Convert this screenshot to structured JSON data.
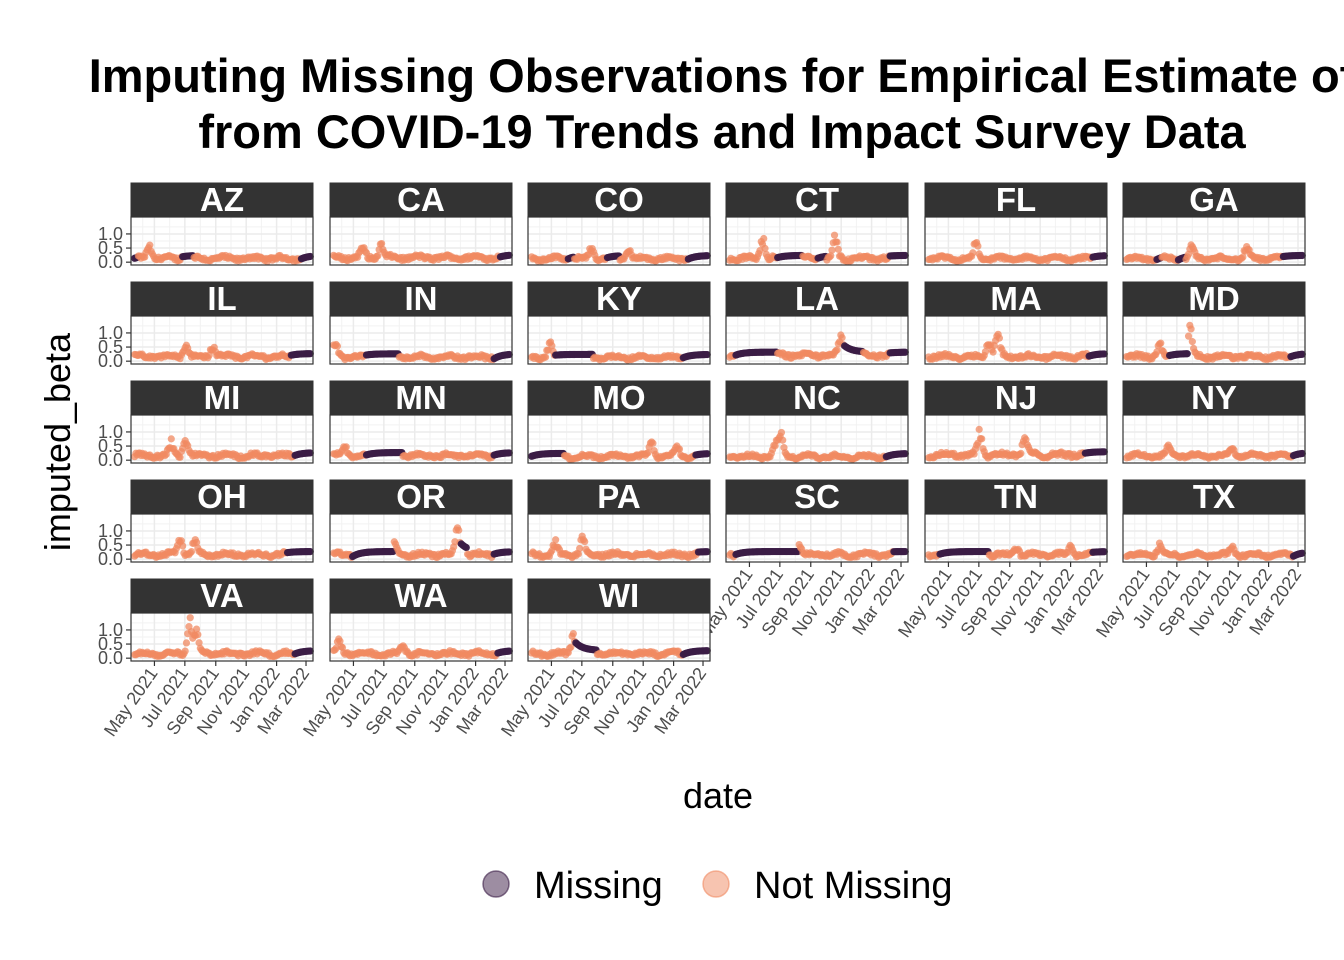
{
  "chart_data": {
    "type": "scatter",
    "title_line1": "Imputing Missing Observations for Empirical Estimate of",
    "title_line2": "from COVID-19 Trends and Impact Survey Data",
    "xlabel": "date",
    "ylabel": "imputed_beta",
    "x_ticks": [
      "May 2021",
      "Jul 2021",
      "Sep 2021",
      "Nov 2021",
      "Jan 2022",
      "Mar 2022"
    ],
    "x_range": [
      "2021-03-15",
      "2022-03-15"
    ],
    "y_ticks": [
      "0.0",
      "0.5",
      "1.0"
    ],
    "ylim": [
      -0.1,
      1.6
    ],
    "grid": true,
    "legend_position": "bottom",
    "colors": {
      "Missing": "#3b1c46",
      "Not Missing": "#f08a62"
    },
    "legend": [
      {
        "label": "Missing",
        "color": "#3b1c46"
      },
      {
        "label": "Not Missing",
        "color": "#f08a62"
      }
    ],
    "facets": [
      {
        "state": "AZ",
        "base": 0.12,
        "noise": 0.12,
        "peaks": [
          [
            0.1,
            0.6
          ],
          [
            0.3,
            0.45
          ]
        ],
        "missing": [
          [
            0.0,
            0.04
          ],
          [
            0.28,
            0.34
          ],
          [
            0.93,
            1.0
          ]
        ]
      },
      {
        "state": "CA",
        "base": 0.15,
        "noise": 0.12,
        "peaks": [
          [
            0.28,
            0.55
          ],
          [
            0.18,
            0.45
          ]
        ],
        "missing": [
          [
            0.93,
            1.0
          ]
        ]
      },
      {
        "state": "CO",
        "base": 0.12,
        "noise": 0.1,
        "peaks": [
          [
            0.35,
            0.45
          ],
          [
            0.55,
            0.4
          ]
        ],
        "missing": [
          [
            0.22,
            0.25
          ],
          [
            0.43,
            0.5
          ],
          [
            0.88,
            1.0
          ]
        ]
      },
      {
        "state": "CT",
        "base": 0.12,
        "noise": 0.12,
        "peaks": [
          [
            0.2,
            0.9
          ],
          [
            0.6,
            0.85
          ]
        ],
        "missing": [
          [
            0.28,
            0.42
          ],
          [
            0.5,
            0.55
          ],
          [
            0.9,
            1.0
          ]
        ]
      },
      {
        "state": "FL",
        "base": 0.12,
        "noise": 0.1,
        "peaks": [
          [
            0.28,
            0.6
          ],
          [
            0.95,
            0.55
          ]
        ],
        "missing": [
          [
            0.92,
            1.0
          ]
        ]
      },
      {
        "state": "GA",
        "base": 0.12,
        "noise": 0.1,
        "peaks": [
          [
            0.38,
            0.5
          ],
          [
            0.68,
            0.45
          ]
        ],
        "missing": [
          [
            0.18,
            0.21
          ],
          [
            0.3,
            0.34
          ],
          [
            0.88,
            1.0
          ]
        ]
      },
      {
        "state": "IL",
        "base": 0.15,
        "noise": 0.12,
        "peaks": [
          [
            0.3,
            0.5
          ],
          [
            0.45,
            0.45
          ]
        ],
        "missing": [
          [
            0.88,
            1.0
          ]
        ]
      },
      {
        "state": "IN",
        "base": 0.14,
        "noise": 0.12,
        "peaks": [
          [
            0.03,
            0.55
          ],
          [
            0.3,
            0.55
          ]
        ],
        "missing": [
          [
            0.2,
            0.38
          ],
          [
            0.9,
            1.0
          ]
        ]
      },
      {
        "state": "KY",
        "base": 0.12,
        "noise": 0.1,
        "peaks": [
          [
            0.27,
            1.15
          ],
          [
            0.12,
            0.6
          ]
        ],
        "missing": [
          [
            0.15,
            0.36
          ],
          [
            0.85,
            1.0
          ]
        ]
      },
      {
        "state": "LA",
        "base": 0.2,
        "noise": 0.12,
        "peaks": [
          [
            0.63,
            0.8
          ],
          [
            0.7,
            0.6
          ]
        ],
        "missing": [
          [
            0.05,
            0.28
          ],
          [
            0.65,
            0.75
          ],
          [
            0.9,
            1.0
          ]
        ]
      },
      {
        "state": "MA",
        "base": 0.15,
        "noise": 0.12,
        "peaks": [
          [
            0.4,
            1.05
          ],
          [
            0.35,
            0.65
          ]
        ],
        "missing": [
          [
            0.9,
            1.0
          ]
        ]
      },
      {
        "state": "MD",
        "base": 0.15,
        "noise": 0.12,
        "peaks": [
          [
            0.37,
            1.1
          ],
          [
            0.2,
            0.55
          ]
        ],
        "missing": [
          [
            0.25,
            0.36
          ],
          [
            0.92,
            1.0
          ]
        ]
      },
      {
        "state": "MI",
        "base": 0.15,
        "noise": 0.12,
        "peaks": [
          [
            0.3,
            0.75
          ],
          [
            0.22,
            0.5
          ]
        ],
        "missing": [
          [
            0.9,
            1.0
          ]
        ]
      },
      {
        "state": "MN",
        "base": 0.15,
        "noise": 0.12,
        "peaks": [
          [
            0.08,
            0.5
          ],
          [
            0.32,
            0.45
          ]
        ],
        "missing": [
          [
            0.2,
            0.4
          ],
          [
            0.9,
            1.0
          ]
        ]
      },
      {
        "state": "MO",
        "base": 0.12,
        "noise": 0.1,
        "peaks": [
          [
            0.68,
            0.6
          ],
          [
            0.82,
            0.5
          ]
        ],
        "missing": [
          [
            0.0,
            0.2
          ],
          [
            0.92,
            1.0
          ]
        ]
      },
      {
        "state": "NC",
        "base": 0.12,
        "noise": 0.1,
        "peaks": [
          [
            0.3,
            0.95
          ],
          [
            0.27,
            0.5
          ]
        ],
        "missing": [
          [
            0.88,
            1.0
          ]
        ]
      },
      {
        "state": "NJ",
        "base": 0.18,
        "noise": 0.14,
        "peaks": [
          [
            0.3,
            0.95
          ],
          [
            0.55,
            0.75
          ]
        ],
        "missing": [
          [
            0.88,
            1.0
          ]
        ]
      },
      {
        "state": "NY",
        "base": 0.15,
        "noise": 0.1,
        "peaks": [
          [
            0.25,
            0.4
          ],
          [
            0.6,
            0.35
          ]
        ],
        "missing": [
          [
            0.93,
            1.0
          ]
        ]
      },
      {
        "state": "OH",
        "base": 0.15,
        "noise": 0.12,
        "peaks": [
          [
            0.27,
            0.75
          ],
          [
            0.35,
            0.55
          ]
        ],
        "missing": [
          [
            0.86,
            1.0
          ]
        ]
      },
      {
        "state": "OR",
        "base": 0.15,
        "noise": 0.12,
        "peaks": [
          [
            0.7,
            1.1
          ],
          [
            0.35,
            0.6
          ]
        ],
        "missing": [
          [
            0.12,
            0.35
          ],
          [
            0.72,
            0.75
          ],
          [
            0.9,
            1.0
          ]
        ]
      },
      {
        "state": "PA",
        "base": 0.15,
        "noise": 0.12,
        "peaks": [
          [
            0.3,
            0.65
          ],
          [
            0.15,
            0.5
          ]
        ],
        "missing": [
          [
            0.93,
            1.0
          ]
        ]
      },
      {
        "state": "SC",
        "base": 0.15,
        "noise": 0.12,
        "peaks": [
          [
            0.18,
            0.8
          ],
          [
            0.4,
            0.5
          ]
        ],
        "missing": [
          [
            0.05,
            0.4
          ],
          [
            0.92,
            1.0
          ]
        ]
      },
      {
        "state": "TN",
        "base": 0.15,
        "noise": 0.1,
        "peaks": [
          [
            0.5,
            0.4
          ],
          [
            0.8,
            0.4
          ]
        ],
        "missing": [
          [
            0.08,
            0.35
          ],
          [
            0.92,
            1.0
          ]
        ]
      },
      {
        "state": "TX",
        "base": 0.14,
        "noise": 0.1,
        "peaks": [
          [
            0.2,
            0.45
          ],
          [
            0.6,
            0.35
          ]
        ],
        "missing": [
          [
            0.93,
            1.0
          ]
        ]
      },
      {
        "state": "VA",
        "base": 0.15,
        "noise": 0.12,
        "peaks": [
          [
            0.32,
            1.45
          ],
          [
            0.36,
            1.0
          ]
        ],
        "missing": [
          [
            0.9,
            1.0
          ]
        ]
      },
      {
        "state": "WA",
        "base": 0.15,
        "noise": 0.12,
        "peaks": [
          [
            0.05,
            0.5
          ],
          [
            0.4,
            0.45
          ]
        ],
        "missing": [
          [
            0.92,
            1.0
          ]
        ]
      },
      {
        "state": "WI",
        "base": 0.15,
        "noise": 0.12,
        "peaks": [
          [
            0.25,
            0.75
          ],
          [
            0.88,
            0.55
          ]
        ],
        "missing": [
          [
            0.26,
            0.38
          ],
          [
            0.85,
            1.0
          ]
        ]
      }
    ]
  }
}
